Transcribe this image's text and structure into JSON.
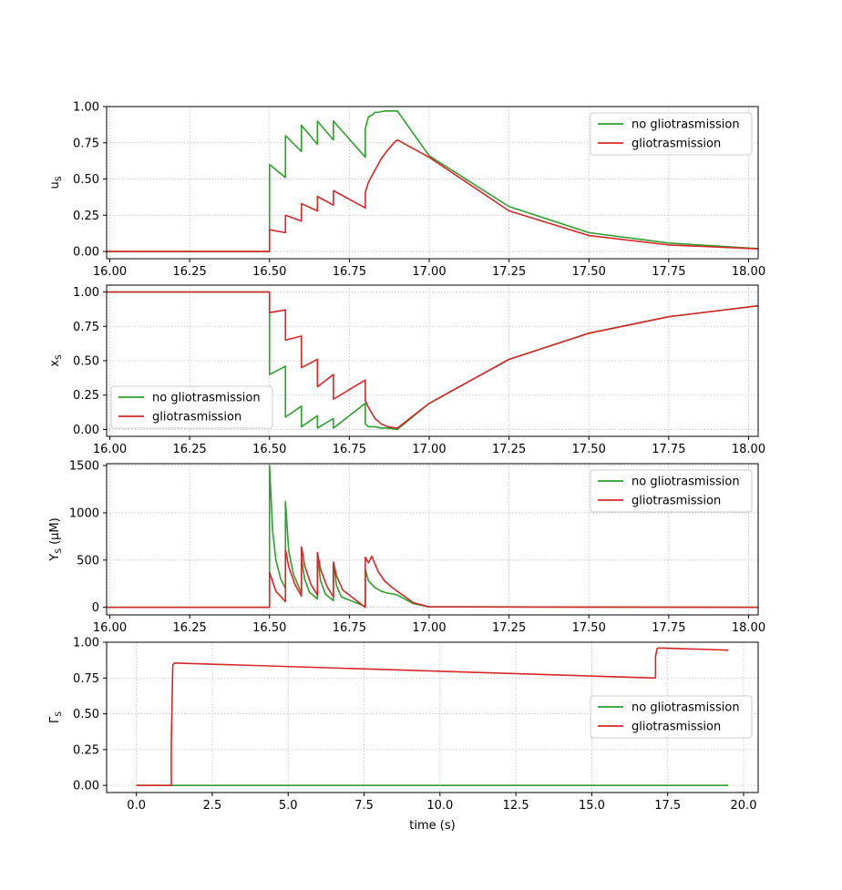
{
  "chart_data": [
    {
      "type": "line",
      "ylabel_main": "u",
      "ylabel_sub": "S",
      "xlim": [
        15.99,
        18.03
      ],
      "ylim": [
        -0.05,
        1.0
      ],
      "xticks": [
        "16.00",
        "16.25",
        "16.50",
        "16.75",
        "17.00",
        "17.25",
        "17.50",
        "17.75",
        "18.00"
      ],
      "yticks": [
        "0.00",
        "0.25",
        "0.50",
        "0.75",
        "1.00"
      ],
      "grid": true,
      "legend_position": "top-right",
      "series": [
        {
          "name": "no gliotrasmission",
          "color": "#2ca02c",
          "x": [
            15.99,
            16.5,
            16.5,
            16.55,
            16.55,
            16.6,
            16.6,
            16.65,
            16.65,
            16.7,
            16.7,
            16.8,
            16.8,
            16.81,
            16.82,
            16.83,
            16.84,
            16.86,
            16.88,
            16.9,
            17.0,
            17.25,
            17.5,
            17.75,
            18.03
          ],
          "y": [
            0.0,
            0.0,
            0.6,
            0.51,
            0.8,
            0.69,
            0.87,
            0.74,
            0.9,
            0.77,
            0.9,
            0.65,
            0.85,
            0.93,
            0.94,
            0.96,
            0.96,
            0.97,
            0.97,
            0.97,
            0.66,
            0.31,
            0.13,
            0.058,
            0.02
          ]
        },
        {
          "name": "gliotrasmission",
          "color": "#d62728",
          "x": [
            15.99,
            16.5,
            16.5,
            16.55,
            16.55,
            16.6,
            16.6,
            16.65,
            16.65,
            16.7,
            16.7,
            16.8,
            16.8,
            16.81,
            16.83,
            16.85,
            16.87,
            16.89,
            16.9,
            17.0,
            17.25,
            17.5,
            17.75,
            18.03
          ],
          "y": [
            0.0,
            0.0,
            0.15,
            0.13,
            0.25,
            0.21,
            0.33,
            0.28,
            0.38,
            0.32,
            0.42,
            0.3,
            0.41,
            0.48,
            0.56,
            0.64,
            0.7,
            0.75,
            0.77,
            0.65,
            0.28,
            0.11,
            0.045,
            0.018
          ]
        }
      ]
    },
    {
      "type": "line",
      "ylabel_main": "x",
      "ylabel_sub": "S",
      "xlim": [
        15.99,
        18.03
      ],
      "ylim": [
        -0.05,
        1.05
      ],
      "xticks": [
        "16.00",
        "16.25",
        "16.50",
        "16.75",
        "17.00",
        "17.25",
        "17.50",
        "17.75",
        "18.00"
      ],
      "yticks": [
        "0.00",
        "0.25",
        "0.50",
        "0.75",
        "1.00"
      ],
      "grid": true,
      "legend_position": "bottom-left",
      "series": [
        {
          "name": "no gliotrasmission",
          "color": "#2ca02c",
          "x": [
            15.99,
            16.5,
            16.5,
            16.55,
            16.55,
            16.6,
            16.6,
            16.65,
            16.65,
            16.7,
            16.7,
            16.8,
            16.8,
            16.81,
            16.83,
            16.85,
            16.87,
            16.9,
            17.0,
            17.25,
            17.5,
            17.75,
            18.03
          ],
          "y": [
            1.0,
            1.0,
            0.4,
            0.46,
            0.09,
            0.17,
            0.02,
            0.1,
            0.01,
            0.08,
            0.01,
            0.19,
            0.04,
            0.02,
            0.02,
            0.01,
            0.01,
            0.0,
            0.19,
            0.51,
            0.7,
            0.82,
            0.9
          ]
        },
        {
          "name": "gliotrasmission",
          "color": "#d62728",
          "x": [
            15.99,
            16.5,
            16.5,
            16.55,
            16.55,
            16.6,
            16.6,
            16.65,
            16.65,
            16.7,
            16.7,
            16.8,
            16.8,
            16.81,
            16.83,
            16.85,
            16.87,
            16.9,
            17.0,
            17.25,
            17.5,
            17.75,
            18.03
          ],
          "y": [
            1.0,
            1.0,
            0.85,
            0.87,
            0.65,
            0.68,
            0.45,
            0.51,
            0.31,
            0.4,
            0.22,
            0.36,
            0.21,
            0.16,
            0.08,
            0.04,
            0.02,
            0.01,
            0.19,
            0.51,
            0.7,
            0.82,
            0.9
          ]
        }
      ]
    },
    {
      "type": "line",
      "ylabel_main": "Y",
      "ylabel_sub": "S",
      "ylabel_unit": " (μM)",
      "xlim": [
        15.99,
        18.03
      ],
      "ylim": [
        -80,
        1520
      ],
      "xticks": [
        "16.00",
        "16.25",
        "16.50",
        "16.75",
        "17.00",
        "17.25",
        "17.50",
        "17.75",
        "18.00"
      ],
      "yticks": [
        "0",
        "500",
        "1000",
        "1500"
      ],
      "grid": true,
      "legend_position": "top-right",
      "series": [
        {
          "name": "no gliotrasmission",
          "color": "#2ca02c",
          "x": [
            15.99,
            16.5,
            16.5,
            16.51,
            16.52,
            16.535,
            16.55,
            16.55,
            16.56,
            16.575,
            16.6,
            16.6,
            16.61,
            16.625,
            16.65,
            16.65,
            16.66,
            16.675,
            16.7,
            16.7,
            16.71,
            16.725,
            16.8,
            16.8,
            16.81,
            16.83,
            16.85,
            16.87,
            16.89,
            16.9,
            16.95,
            17.0,
            18.03
          ],
          "y": [
            0,
            0,
            1500,
            800,
            500,
            300,
            200,
            1120,
            600,
            350,
            150,
            520,
            300,
            160,
            90,
            540,
            280,
            140,
            70,
            460,
            230,
            110,
            10,
            400,
            280,
            210,
            170,
            150,
            140,
            130,
            40,
            5,
            0
          ]
        },
        {
          "name": "gliotrasmission",
          "color": "#d62728",
          "x": [
            15.99,
            16.5,
            16.5,
            16.52,
            16.55,
            16.55,
            16.56,
            16.58,
            16.6,
            16.6,
            16.61,
            16.63,
            16.65,
            16.65,
            16.66,
            16.68,
            16.7,
            16.7,
            16.71,
            16.73,
            16.8,
            16.8,
            16.81,
            16.82,
            16.84,
            16.86,
            16.88,
            16.9,
            16.95,
            17.0,
            18.03
          ],
          "y": [
            0,
            0,
            370,
            170,
            60,
            610,
            430,
            240,
            120,
            640,
            440,
            240,
            130,
            580,
            400,
            220,
            110,
            480,
            330,
            180,
            0,
            530,
            470,
            540,
            380,
            280,
            220,
            170,
            50,
            5,
            0
          ]
        }
      ]
    },
    {
      "type": "line",
      "ylabel_main": "Γ",
      "ylabel_sub": "S",
      "xlabel": "time (s)",
      "xlim": [
        -0.98,
        20.48
      ],
      "ylim": [
        -0.05,
        1.0
      ],
      "xticks": [
        "0.0",
        "2.5",
        "5.0",
        "7.5",
        "10.0",
        "12.5",
        "15.0",
        "17.5",
        "20.0"
      ],
      "yticks": [
        "0.00",
        "0.25",
        "0.50",
        "0.75",
        "1.00"
      ],
      "grid": true,
      "legend_position": "center-right",
      "series": [
        {
          "name": "no gliotrasmission",
          "color": "#2ca02c",
          "x": [
            0.0,
            19.5
          ],
          "y": [
            0.0,
            0.0
          ]
        },
        {
          "name": "gliotrasmission",
          "color": "#d62728",
          "x": [
            0.0,
            1.15,
            1.15,
            1.2,
            1.25,
            17.1,
            17.1,
            17.15,
            17.2,
            19.5
          ],
          "y": [
            0.0,
            0.0,
            0.3,
            0.84,
            0.855,
            0.75,
            0.9,
            0.955,
            0.96,
            0.945
          ]
        }
      ]
    }
  ]
}
